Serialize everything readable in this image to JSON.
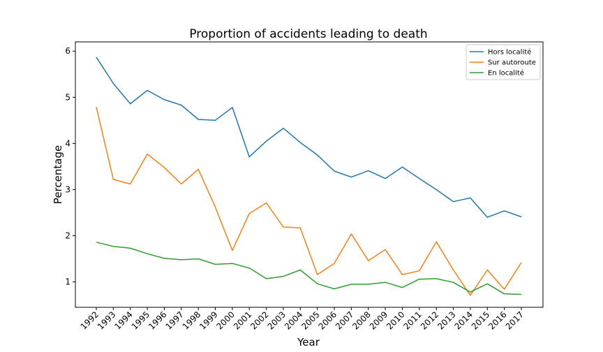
{
  "chart_data": {
    "type": "line",
    "title": "Proportion of accidents leading to death",
    "xlabel": "Year",
    "ylabel": "Percentage",
    "x": [
      "1992",
      "1993",
      "1994",
      "1995",
      "1996",
      "1997",
      "1998",
      "1999",
      "2000",
      "2001",
      "2002",
      "2003",
      "2004",
      "2005",
      "2006",
      "2007",
      "2008",
      "2009",
      "2010",
      "2011",
      "2012",
      "2013",
      "2014",
      "2015",
      "2016",
      "2017"
    ],
    "yticks": [
      1,
      2,
      3,
      4,
      5,
      6
    ],
    "ylim": [
      0.45,
      6.2
    ],
    "grid": false,
    "legend_position": "top-right",
    "series": [
      {
        "name": "Hors localité",
        "color": "#1f77b4",
        "values": [
          5.87,
          5.3,
          4.86,
          5.15,
          4.95,
          4.83,
          4.52,
          4.5,
          4.78,
          3.71,
          4.05,
          4.33,
          4.02,
          3.75,
          3.4,
          3.27,
          3.41,
          3.24,
          3.49,
          3.24,
          3.0,
          2.74,
          2.82,
          2.4,
          2.54,
          2.41
        ]
      },
      {
        "name": "Sur autoroute",
        "color": "#ff7f0e",
        "values": [
          4.79,
          3.22,
          3.12,
          3.77,
          3.48,
          3.12,
          3.44,
          2.62,
          1.68,
          2.48,
          2.71,
          2.19,
          2.17,
          1.16,
          1.4,
          2.04,
          1.46,
          1.7,
          1.16,
          1.24,
          1.87,
          1.26,
          0.71,
          1.26,
          0.84,
          1.42
        ]
      },
      {
        "name": "En localité",
        "color": "#2ca02c",
        "values": [
          1.86,
          1.77,
          1.73,
          1.61,
          1.51,
          1.48,
          1.5,
          1.38,
          1.4,
          1.3,
          1.07,
          1.12,
          1.26,
          0.96,
          0.85,
          0.95,
          0.95,
          0.99,
          0.88,
          1.06,
          1.07,
          0.99,
          0.78,
          0.96,
          0.74,
          0.73
        ]
      }
    ]
  }
}
